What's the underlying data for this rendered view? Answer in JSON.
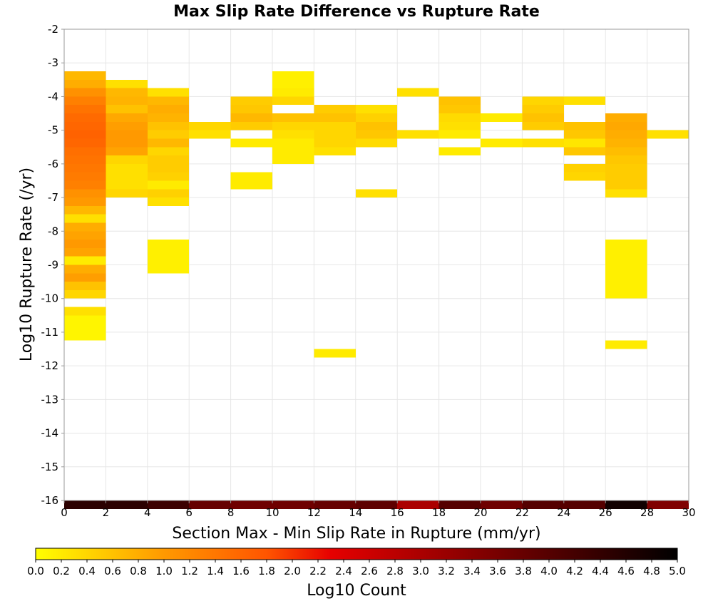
{
  "chart_data": {
    "type": "heatmap",
    "title": "Max Slip Rate Difference vs Rupture Rate",
    "xlabel": "Section Max - Min Slip Rate in Rupture (mm/yr)",
    "ylabel": "Log10 Rupture Rate (/yr)",
    "xlim": [
      0,
      30
    ],
    "ylim": [
      -16,
      -2
    ],
    "x_ticks": [
      "0",
      "2",
      "4",
      "6",
      "8",
      "10",
      "12",
      "14",
      "16",
      "18",
      "20",
      "22",
      "24",
      "26",
      "28",
      "30"
    ],
    "y_ticks": [
      "-2",
      "-3",
      "-4",
      "-5",
      "-6",
      "-7",
      "-8",
      "-9",
      "-10",
      "-11",
      "-12",
      "-13",
      "-14",
      "-15",
      "-16"
    ],
    "grid": true,
    "x_bin_width": 2,
    "y_bin_height": 0.25,
    "colorbar": {
      "label": "Log10 Count",
      "range": [
        0,
        5
      ],
      "ticks": [
        "0.0",
        "0.2",
        "0.4",
        "0.6",
        "0.8",
        "1.0",
        "1.2",
        "1.4",
        "1.6",
        "1.8",
        "2.0",
        "2.2",
        "2.4",
        "2.6",
        "2.8",
        "3.0",
        "3.2",
        "3.4",
        "3.6",
        "3.8",
        "4.0",
        "4.2",
        "4.4",
        "4.6",
        "4.8",
        "5.0"
      ],
      "colors": [
        "#ffff00",
        "#ff9900",
        "#ff5500",
        "#e60000",
        "#800000",
        "#000000"
      ],
      "placement": "bottom"
    },
    "cells": [
      {
        "x": 0,
        "y": -3.25,
        "value": 0.7
      },
      {
        "x": 0,
        "y": -3.5,
        "value": 0.8
      },
      {
        "x": 0,
        "y": -3.75,
        "value": 1.1
      },
      {
        "x": 0,
        "y": -4.0,
        "value": 1.3
      },
      {
        "x": 0,
        "y": -4.25,
        "value": 1.45
      },
      {
        "x": 0,
        "y": -4.5,
        "value": 1.55
      },
      {
        "x": 0,
        "y": -4.75,
        "value": 1.6
      },
      {
        "x": 0,
        "y": -5.0,
        "value": 1.65
      },
      {
        "x": 0,
        "y": -5.25,
        "value": 1.6
      },
      {
        "x": 0,
        "y": -5.5,
        "value": 1.5
      },
      {
        "x": 0,
        "y": -5.75,
        "value": 1.45
      },
      {
        "x": 0,
        "y": -6.0,
        "value": 1.4
      },
      {
        "x": 0,
        "y": -6.25,
        "value": 1.35
      },
      {
        "x": 0,
        "y": -6.5,
        "value": 1.3
      },
      {
        "x": 0,
        "y": -6.75,
        "value": 1.1
      },
      {
        "x": 0,
        "y": -7.0,
        "value": 1.0
      },
      {
        "x": 0,
        "y": -7.25,
        "value": 0.7
      },
      {
        "x": 0,
        "y": -7.5,
        "value": 0.3
      },
      {
        "x": 0,
        "y": -7.75,
        "value": 0.8
      },
      {
        "x": 0,
        "y": -8.0,
        "value": 0.9
      },
      {
        "x": 0,
        "y": -8.25,
        "value": 1.0
      },
      {
        "x": 0,
        "y": -8.5,
        "value": 0.9
      },
      {
        "x": 0,
        "y": -8.75,
        "value": 0.2
      },
      {
        "x": 0,
        "y": -9.0,
        "value": 0.8
      },
      {
        "x": 0,
        "y": -9.25,
        "value": 0.95
      },
      {
        "x": 0,
        "y": -9.5,
        "value": 0.6
      },
      {
        "x": 0,
        "y": -9.75,
        "value": 0.4
      },
      {
        "x": 0,
        "y": -10.25,
        "value": 0.3
      },
      {
        "x": 0,
        "y": -10.5,
        "value": 0.1
      },
      {
        "x": 0,
        "y": -10.75,
        "value": 0.1
      },
      {
        "x": 0,
        "y": -11.0,
        "value": 0.1
      },
      {
        "x": 2,
        "y": -3.5,
        "value": 0.3
      },
      {
        "x": 2,
        "y": -3.75,
        "value": 0.7
      },
      {
        "x": 2,
        "y": -4.0,
        "value": 0.75
      },
      {
        "x": 2,
        "y": -4.25,
        "value": 0.6
      },
      {
        "x": 2,
        "y": -4.5,
        "value": 0.85
      },
      {
        "x": 2,
        "y": -4.75,
        "value": 0.95
      },
      {
        "x": 2,
        "y": -5.0,
        "value": 1.0
      },
      {
        "x": 2,
        "y": -5.25,
        "value": 1.0
      },
      {
        "x": 2,
        "y": -5.5,
        "value": 0.9
      },
      {
        "x": 2,
        "y": -5.75,
        "value": 0.4
      },
      {
        "x": 2,
        "y": -6.0,
        "value": 0.3
      },
      {
        "x": 2,
        "y": -6.25,
        "value": 0.3
      },
      {
        "x": 2,
        "y": -6.5,
        "value": 0.3
      },
      {
        "x": 2,
        "y": -6.75,
        "value": 0.4
      },
      {
        "x": 4,
        "y": -3.75,
        "value": 0.3
      },
      {
        "x": 4,
        "y": -4.0,
        "value": 0.7
      },
      {
        "x": 4,
        "y": -4.25,
        "value": 0.8
      },
      {
        "x": 4,
        "y": -4.5,
        "value": 0.75
      },
      {
        "x": 4,
        "y": -4.75,
        "value": 0.6
      },
      {
        "x": 4,
        "y": -5.0,
        "value": 0.5
      },
      {
        "x": 4,
        "y": -5.25,
        "value": 0.7
      },
      {
        "x": 4,
        "y": -5.5,
        "value": 0.4
      },
      {
        "x": 4,
        "y": -5.75,
        "value": 0.5
      },
      {
        "x": 4,
        "y": -6.0,
        "value": 0.5
      },
      {
        "x": 4,
        "y": -6.25,
        "value": 0.45
      },
      {
        "x": 4,
        "y": -6.5,
        "value": 0.2
      },
      {
        "x": 4,
        "y": -6.75,
        "value": 0.45
      },
      {
        "x": 4,
        "y": -7.0,
        "value": 0.3
      },
      {
        "x": 4,
        "y": -8.25,
        "value": 0.15
      },
      {
        "x": 4,
        "y": -8.5,
        "value": 0.15
      },
      {
        "x": 4,
        "y": -8.75,
        "value": 0.15
      },
      {
        "x": 4,
        "y": -9.0,
        "value": 0.15
      },
      {
        "x": 6,
        "y": -4.75,
        "value": 0.4
      },
      {
        "x": 6,
        "y": -5.0,
        "value": 0.3
      },
      {
        "x": 8,
        "y": -4.0,
        "value": 0.5
      },
      {
        "x": 8,
        "y": -4.25,
        "value": 0.55
      },
      {
        "x": 8,
        "y": -4.5,
        "value": 0.7
      },
      {
        "x": 8,
        "y": -4.75,
        "value": 0.5
      },
      {
        "x": 8,
        "y": -5.25,
        "value": 0.2
      },
      {
        "x": 8,
        "y": -6.25,
        "value": 0.2
      },
      {
        "x": 8,
        "y": -6.5,
        "value": 0.2
      },
      {
        "x": 10,
        "y": -3.25,
        "value": 0.15
      },
      {
        "x": 10,
        "y": -3.5,
        "value": 0.15
      },
      {
        "x": 10,
        "y": -3.75,
        "value": 0.2
      },
      {
        "x": 10,
        "y": -4.0,
        "value": 0.4
      },
      {
        "x": 10,
        "y": -4.5,
        "value": 0.6
      },
      {
        "x": 10,
        "y": -4.75,
        "value": 0.4
      },
      {
        "x": 10,
        "y": -5.0,
        "value": 0.3
      },
      {
        "x": 10,
        "y": -5.25,
        "value": 0.2
      },
      {
        "x": 10,
        "y": -5.5,
        "value": 0.2
      },
      {
        "x": 10,
        "y": -5.75,
        "value": 0.2
      },
      {
        "x": 12,
        "y": -4.25,
        "value": 0.5
      },
      {
        "x": 12,
        "y": -4.5,
        "value": 0.6
      },
      {
        "x": 12,
        "y": -4.75,
        "value": 0.4
      },
      {
        "x": 12,
        "y": -5.0,
        "value": 0.4
      },
      {
        "x": 12,
        "y": -5.25,
        "value": 0.4
      },
      {
        "x": 12,
        "y": -5.5,
        "value": 0.3
      },
      {
        "x": 12,
        "y": -11.5,
        "value": 0.2
      },
      {
        "x": 14,
        "y": -4.25,
        "value": 0.3
      },
      {
        "x": 14,
        "y": -4.5,
        "value": 0.45
      },
      {
        "x": 14,
        "y": -4.75,
        "value": 0.6
      },
      {
        "x": 14,
        "y": -5.0,
        "value": 0.55
      },
      {
        "x": 14,
        "y": -5.25,
        "value": 0.35
      },
      {
        "x": 14,
        "y": -6.75,
        "value": 0.3
      },
      {
        "x": 16,
        "y": -3.75,
        "value": 0.3
      },
      {
        "x": 16,
        "y": -5.0,
        "value": 0.3
      },
      {
        "x": 18,
        "y": -4.0,
        "value": 0.6
      },
      {
        "x": 18,
        "y": -4.25,
        "value": 0.55
      },
      {
        "x": 18,
        "y": -4.5,
        "value": 0.35
      },
      {
        "x": 18,
        "y": -4.75,
        "value": 0.3
      },
      {
        "x": 18,
        "y": -5.0,
        "value": 0.2
      },
      {
        "x": 18,
        "y": -5.5,
        "value": 0.2
      },
      {
        "x": 20,
        "y": -4.5,
        "value": 0.2
      },
      {
        "x": 20,
        "y": -5.25,
        "value": 0.2
      },
      {
        "x": 22,
        "y": -4.0,
        "value": 0.4
      },
      {
        "x": 22,
        "y": -4.25,
        "value": 0.5
      },
      {
        "x": 22,
        "y": -4.5,
        "value": 0.6
      },
      {
        "x": 22,
        "y": -4.75,
        "value": 0.5
      },
      {
        "x": 22,
        "y": -5.25,
        "value": 0.3
      },
      {
        "x": 24,
        "y": -4.0,
        "value": 0.3
      },
      {
        "x": 24,
        "y": -4.75,
        "value": 0.6
      },
      {
        "x": 24,
        "y": -5.0,
        "value": 0.55
      },
      {
        "x": 24,
        "y": -5.25,
        "value": 0.25
      },
      {
        "x": 24,
        "y": -5.5,
        "value": 0.55
      },
      {
        "x": 24,
        "y": -6.0,
        "value": 0.45
      },
      {
        "x": 24,
        "y": -6.25,
        "value": 0.4
      },
      {
        "x": 26,
        "y": -4.5,
        "value": 0.8
      },
      {
        "x": 26,
        "y": -4.75,
        "value": 0.85
      },
      {
        "x": 26,
        "y": -5.0,
        "value": 0.8
      },
      {
        "x": 26,
        "y": -5.25,
        "value": 0.75
      },
      {
        "x": 26,
        "y": -5.5,
        "value": 0.65
      },
      {
        "x": 26,
        "y": -5.75,
        "value": 0.55
      },
      {
        "x": 26,
        "y": -6.0,
        "value": 0.5
      },
      {
        "x": 26,
        "y": -6.25,
        "value": 0.5
      },
      {
        "x": 26,
        "y": -6.5,
        "value": 0.5
      },
      {
        "x": 26,
        "y": -6.75,
        "value": 0.3
      },
      {
        "x": 26,
        "y": -8.25,
        "value": 0.15
      },
      {
        "x": 26,
        "y": -8.5,
        "value": 0.15
      },
      {
        "x": 26,
        "y": -8.75,
        "value": 0.15
      },
      {
        "x": 26,
        "y": -9.0,
        "value": 0.15
      },
      {
        "x": 26,
        "y": -9.25,
        "value": 0.15
      },
      {
        "x": 26,
        "y": -9.5,
        "value": 0.15
      },
      {
        "x": 26,
        "y": -9.75,
        "value": 0.15
      },
      {
        "x": 26,
        "y": -11.25,
        "value": 0.2
      },
      {
        "x": 28,
        "y": -5.0,
        "value": 0.3
      },
      {
        "x": 0,
        "y": -16.0,
        "value": 4.5
      },
      {
        "x": 2,
        "y": -16.0,
        "value": 4.5
      },
      {
        "x": 4,
        "y": -16.0,
        "value": 4.3
      },
      {
        "x": 6,
        "y": -16.0,
        "value": 3.8
      },
      {
        "x": 8,
        "y": -16.0,
        "value": 3.7
      },
      {
        "x": 10,
        "y": -16.0,
        "value": 3.7
      },
      {
        "x": 12,
        "y": -16.0,
        "value": 3.8
      },
      {
        "x": 14,
        "y": -16.0,
        "value": 3.9
      },
      {
        "x": 16,
        "y": -16.0,
        "value": 3.0
      },
      {
        "x": 18,
        "y": -16.0,
        "value": 4.0
      },
      {
        "x": 20,
        "y": -16.0,
        "value": 3.7
      },
      {
        "x": 22,
        "y": -16.0,
        "value": 4.0
      },
      {
        "x": 24,
        "y": -16.0,
        "value": 4.0
      },
      {
        "x": 26,
        "y": -16.0,
        "value": 4.8
      },
      {
        "x": 28,
        "y": -16.0,
        "value": 3.5
      }
    ]
  }
}
